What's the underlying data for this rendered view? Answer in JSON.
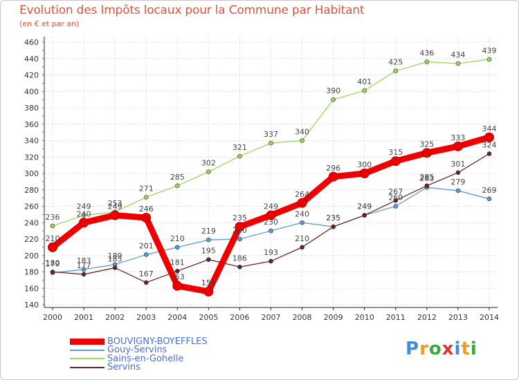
{
  "header": {
    "title": "Evolution des Impôts locaux pour la Commune par Habitant",
    "subtitle": "(en € et par an)"
  },
  "logo": {
    "letters": [
      {
        "char": "P",
        "color": "#3c8dde"
      },
      {
        "char": "r",
        "color": "#f29a1e"
      },
      {
        "char": "o",
        "color": "#3aab3a"
      },
      {
        "char": "x",
        "color": "#e4322b"
      },
      {
        "char": "i",
        "color": "#3c8dde"
      },
      {
        "char": "t",
        "color": "#f29a1e"
      },
      {
        "char": "i",
        "color": "#3aab3a"
      }
    ]
  },
  "chart_data": {
    "type": "line",
    "title": "Evolution des Impôts locaux pour la Commune par Habitant",
    "subtitle": "(en € et par an)",
    "xlabel": "",
    "ylabel": "",
    "x": [
      "2000",
      "2001",
      "2002",
      "2003",
      "2004",
      "2005",
      "2006",
      "2007",
      "2008",
      "2009",
      "2010",
      "2011",
      "2012",
      "2013",
      "2014"
    ],
    "ylim": [
      140,
      460
    ],
    "yticks": [
      140,
      160,
      180,
      200,
      220,
      240,
      260,
      280,
      300,
      320,
      340,
      360,
      380,
      400,
      420,
      440,
      460
    ],
    "grid": true,
    "legend_position": "bottom-left",
    "series": [
      {
        "name": "BOUVIGNY-BOYEFFLES",
        "color": "#ee0000",
        "emphasis": true,
        "values": [
          210,
          240,
          249,
          246,
          163,
          156,
          235,
          249,
          264,
          296,
          300,
          315,
          325,
          333,
          344
        ]
      },
      {
        "name": "Gouy-Servins",
        "color": "#5b9bd5",
        "emphasis": false,
        "values": [
          179,
          183,
          189,
          201,
          210,
          219,
          220,
          230,
          240,
          235,
          249,
          260,
          283,
          279,
          269
        ]
      },
      {
        "name": "Sains-en-Gohelle",
        "color": "#9bd65b",
        "emphasis": false,
        "values": [
          236,
          249,
          253,
          271,
          285,
          302,
          321,
          337,
          340,
          390,
          401,
          425,
          436,
          434,
          439
        ]
      },
      {
        "name": "Servins",
        "color": "#6b2222",
        "emphasis": false,
        "values": [
          180,
          177,
          185,
          167,
          181,
          195,
          186,
          193,
          210,
          235,
          249,
          267,
          285,
          301,
          324
        ]
      }
    ]
  }
}
